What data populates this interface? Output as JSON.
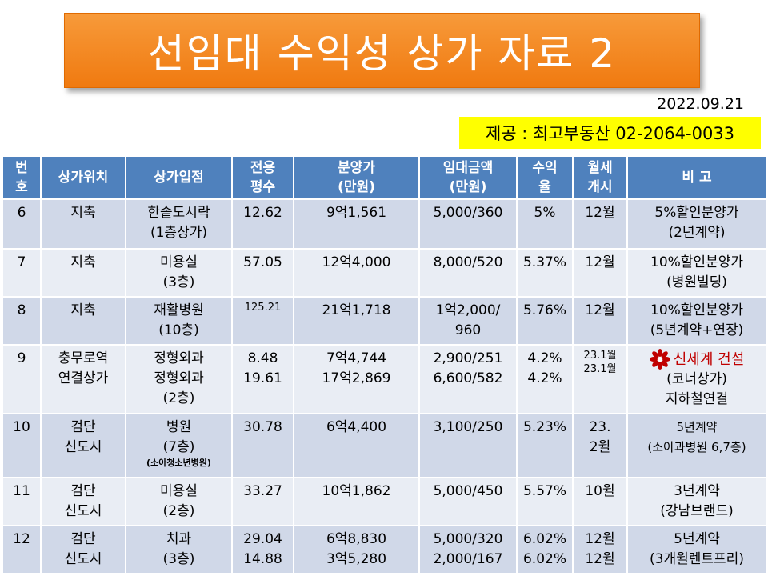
{
  "header": {
    "title": "선임대 수익성 상가 자료 2",
    "date": "2022.09.21",
    "provider": "제공 : 최고부동산 02-2064-0033"
  },
  "table": {
    "headers": [
      [
        "번",
        "호"
      ],
      [
        "상가위치"
      ],
      [
        "상가입점"
      ],
      [
        "전용",
        "평수"
      ],
      [
        "분양가",
        "(만원)"
      ],
      [
        "임대금액",
        "(만원)"
      ],
      [
        "수익",
        "율"
      ],
      [
        "월세",
        "개시"
      ],
      [
        "비  고"
      ]
    ],
    "rows": [
      {
        "no": "6",
        "location": [
          "지축"
        ],
        "store": [
          "한솥도시락",
          "(1층상가)"
        ],
        "store_note": "",
        "area": [
          "12.62"
        ],
        "price": [
          "9억1,561"
        ],
        "rent": [
          "5,000/360"
        ],
        "yield": [
          "5%"
        ],
        "start": [
          "12월"
        ],
        "note": [
          "5%할인분양가",
          "(2년계약)"
        ],
        "note_logo": ""
      },
      {
        "no": "7",
        "location": [
          "지축"
        ],
        "store": [
          "미용실",
          "(3층)"
        ],
        "store_note": "",
        "area": [
          "57.05"
        ],
        "price": [
          "12억4,000"
        ],
        "rent": [
          "8,000/520"
        ],
        "yield": [
          "5.37%"
        ],
        "start": [
          "12월"
        ],
        "note": [
          "10%할인분양가",
          "(병원빌딩)"
        ],
        "note_logo": ""
      },
      {
        "no": "8",
        "location": [
          "지축"
        ],
        "store": [
          "재활병원",
          "(10층)"
        ],
        "store_note": "",
        "area": [
          "125.21"
        ],
        "price": [
          "21억1,718"
        ],
        "rent": [
          "1억2,000/",
          "960"
        ],
        "yield": [
          "5.76%"
        ],
        "start": [
          "12월"
        ],
        "note": [
          "10%할인분양가",
          "(5년계약+연장)"
        ],
        "note_logo": ""
      },
      {
        "no": "9",
        "location": [
          "충무로역",
          "연결상가"
        ],
        "store": [
          "정형외과",
          "정형외과",
          "(2층)"
        ],
        "store_note": "",
        "area": [
          "8.48",
          "19.61"
        ],
        "price": [
          "7억4,744",
          "17억2,869"
        ],
        "rent": [
          "2,900/251",
          "6,600/582"
        ],
        "yield": [
          "4.2%",
          "4.2%"
        ],
        "start": [
          "23.1월",
          "23.1월"
        ],
        "note": [
          "(코너상가)",
          "지하철연결"
        ],
        "note_logo": "신세계 건설"
      },
      {
        "no": "10",
        "location": [
          "검단",
          "신도시"
        ],
        "store": [
          "병원",
          "(7층)"
        ],
        "store_note": "(소아청소년병원)",
        "area": [
          "30.78"
        ],
        "price": [
          "6억4,400"
        ],
        "rent": [
          "3,100/250"
        ],
        "yield": [
          "5.23%"
        ],
        "start": [
          "23.",
          "2월"
        ],
        "note": [
          "5년계약",
          "(소아과병원 6,7층)"
        ],
        "note_logo": ""
      },
      {
        "no": "11",
        "location": [
          "검단",
          "신도시"
        ],
        "store": [
          "미용실",
          "(2층)"
        ],
        "store_note": "",
        "area": [
          "33.27"
        ],
        "price": [
          "10억1,862"
        ],
        "rent": [
          "5,000/450"
        ],
        "yield": [
          "5.57%"
        ],
        "start": [
          "10월"
        ],
        "note": [
          "3년계약",
          "(강남브랜드)"
        ],
        "note_logo": ""
      },
      {
        "no": "12",
        "location": [
          "검단",
          "신도시"
        ],
        "store": [
          "치과",
          "(3층)"
        ],
        "store_note": "",
        "area": [
          "29.04",
          "14.88"
        ],
        "price": [
          "6억8,830",
          "3억5,280"
        ],
        "rent": [
          "5,000/320",
          "2,000/167"
        ],
        "yield": [
          "6.02%",
          "6.02%"
        ],
        "start": [
          "12월",
          "12월"
        ],
        "note": [
          "5년계약",
          "(3개월렌트프리)"
        ],
        "note_logo": ""
      }
    ]
  },
  "colors": {
    "title_bg": "#f79a3a",
    "header_bg": "#4f81bd",
    "row_odd": "#d0d8e8",
    "row_even": "#e9edf4",
    "provider_bg": "#ffff00",
    "logo": "#c00000"
  },
  "icons": {
    "logo": "shinsegae-flower-icon"
  }
}
